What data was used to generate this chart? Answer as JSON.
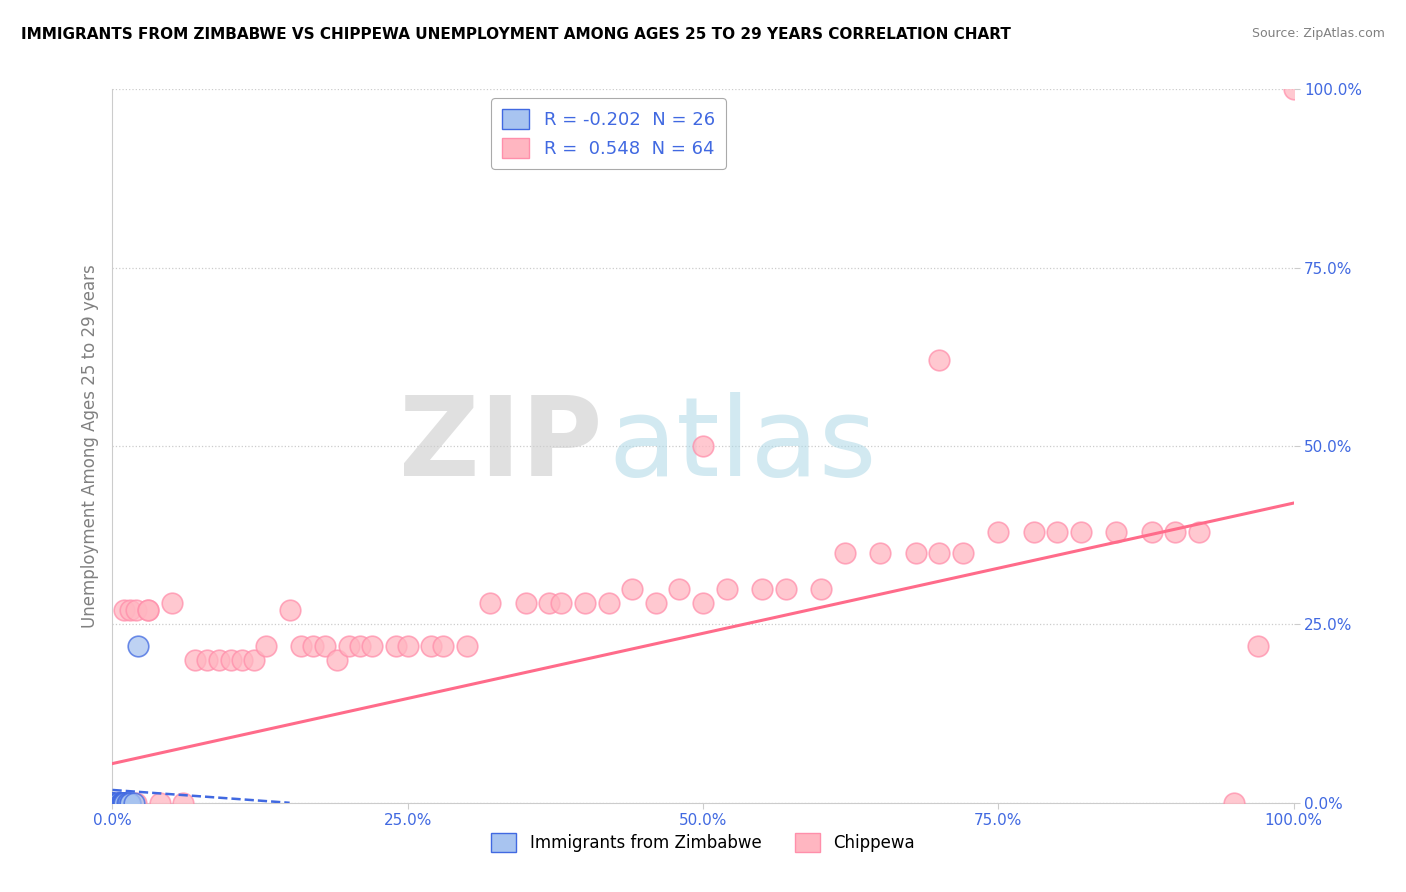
{
  "title": "IMMIGRANTS FROM ZIMBABWE VS CHIPPEWA UNEMPLOYMENT AMONG AGES 25 TO 29 YEARS CORRELATION CHART",
  "source": "Source: ZipAtlas.com",
  "ylabel": "Unemployment Among Ages 25 to 29 years",
  "xlim": [
    0,
    1.0
  ],
  "ylim": [
    0,
    1.0
  ],
  "xtick_vals": [
    0.0,
    0.25,
    0.5,
    0.75,
    1.0
  ],
  "ytick_vals": [
    0.0,
    0.25,
    0.5,
    0.75,
    1.0
  ],
  "xtick_labels": [
    "0.0%",
    "25.0%",
    "50.0%",
    "75.0%",
    "100.0%"
  ],
  "ytick_labels": [
    "0.0%",
    "25.0%",
    "50.0%",
    "75.0%",
    "100.0%"
  ],
  "blue_face": "#A8C4F0",
  "blue_edge": "#4169E1",
  "pink_face": "#FFB6C1",
  "pink_edge": "#FF8FAB",
  "pink_line": "#FF6B8A",
  "blue_line": "#4169E1",
  "R_blue": -0.202,
  "N_blue": 26,
  "R_pink": 0.548,
  "N_pink": 64,
  "legend_blue": "Immigrants from Zimbabwe",
  "legend_pink": "Chippewa",
  "watermark_zip": "ZIP",
  "watermark_atlas": "atlas",
  "tick_color": "#4169E1",
  "grid_color": "#CCCCCC",
  "bg_color": "#FFFFFF",
  "blue_scatter_x": [
    0.0,
    0.0,
    0.0,
    0.0,
    0.0,
    0.0,
    0.0,
    0.005,
    0.005,
    0.005,
    0.005,
    0.007,
    0.007,
    0.008,
    0.008,
    0.009,
    0.009,
    0.01,
    0.01,
    0.01,
    0.012,
    0.013,
    0.015,
    0.015,
    0.018,
    0.022
  ],
  "blue_scatter_y": [
    0.0,
    0.0,
    0.0,
    0.0,
    0.0,
    0.0,
    0.0,
    0.0,
    0.0,
    0.0,
    0.0,
    0.0,
    0.0,
    0.0,
    0.0,
    0.0,
    0.0,
    0.0,
    0.0,
    0.0,
    0.0,
    0.0,
    0.0,
    0.0,
    0.0,
    0.22
  ],
  "pink_scatter_x": [
    0.0,
    0.005,
    0.01,
    0.01,
    0.015,
    0.02,
    0.02,
    0.03,
    0.04,
    0.05,
    0.06,
    0.07,
    0.08,
    0.09,
    0.1,
    0.11,
    0.12,
    0.13,
    0.15,
    0.16,
    0.17,
    0.18,
    0.19,
    0.2,
    0.21,
    0.22,
    0.24,
    0.25,
    0.27,
    0.28,
    0.3,
    0.32,
    0.35,
    0.37,
    0.38,
    0.4,
    0.42,
    0.44,
    0.46,
    0.48,
    0.5,
    0.52,
    0.55,
    0.57,
    0.6,
    0.62,
    0.65,
    0.68,
    0.7,
    0.72,
    0.75,
    0.78,
    0.8,
    0.82,
    0.85,
    0.88,
    0.9,
    0.92,
    0.95,
    0.97,
    1.0,
    0.5,
    0.7,
    0.03
  ],
  "pink_scatter_y": [
    0.0,
    0.0,
    0.27,
    0.0,
    0.27,
    0.0,
    0.27,
    0.27,
    0.0,
    0.28,
    0.0,
    0.2,
    0.2,
    0.2,
    0.2,
    0.2,
    0.2,
    0.22,
    0.27,
    0.22,
    0.22,
    0.22,
    0.2,
    0.22,
    0.22,
    0.22,
    0.22,
    0.22,
    0.22,
    0.22,
    0.22,
    0.28,
    0.28,
    0.28,
    0.28,
    0.28,
    0.28,
    0.3,
    0.28,
    0.3,
    0.28,
    0.3,
    0.3,
    0.3,
    0.3,
    0.35,
    0.35,
    0.35,
    0.35,
    0.35,
    0.38,
    0.38,
    0.38,
    0.38,
    0.38,
    0.38,
    0.38,
    0.38,
    0.0,
    0.22,
    1.0,
    0.5,
    0.62,
    0.27
  ],
  "pink_trend_x0": 0.0,
  "pink_trend_y0": 0.055,
  "pink_trend_x1": 1.0,
  "pink_trend_y1": 0.42,
  "blue_trend_x0": 0.0,
  "blue_trend_y0": 0.018,
  "blue_trend_x1": 0.15,
  "blue_trend_y1": 0.0
}
